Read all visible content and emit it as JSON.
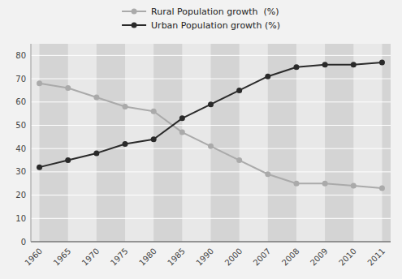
{
  "chart_data": {
    "type": "line",
    "categories": [
      "1960",
      "1965",
      "1970",
      "1975",
      "1980",
      "1985",
      "1990",
      "2000",
      "2007",
      "2008",
      "2009",
      "2010",
      "2011"
    ],
    "series": [
      {
        "name": "Rural Population growth  (%)",
        "color": "#aaaaaa",
        "marker": "circle",
        "values": [
          68,
          66,
          62,
          58,
          56,
          47,
          41,
          35,
          29,
          25,
          25,
          24,
          23
        ]
      },
      {
        "name": "Urban Population growth (%)",
        "color": "#2a2a2a",
        "marker": "circle",
        "values": [
          32,
          35,
          38,
          42,
          44,
          53,
          59,
          65,
          71,
          75,
          76,
          76,
          77
        ]
      }
    ],
    "ylim": [
      0,
      85
    ],
    "yticks": [
      0,
      10,
      20,
      30,
      40,
      50,
      60,
      70,
      80
    ],
    "grid": true,
    "legend": "top"
  }
}
